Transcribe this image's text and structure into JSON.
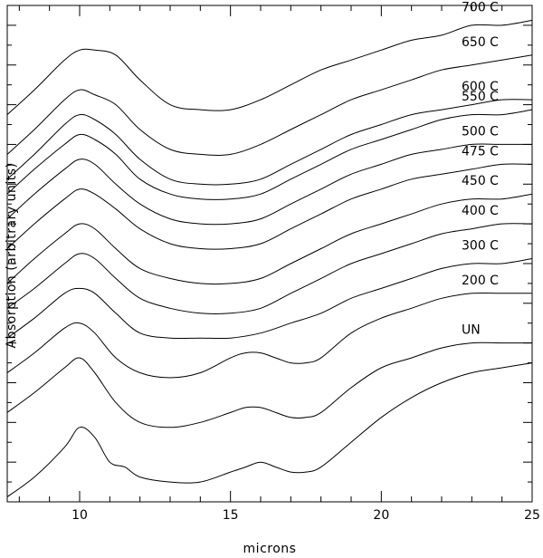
{
  "chart_data": {
    "type": "line",
    "title": "",
    "xlabel": "microns",
    "ylabel": "Absorption (arbitrary units)",
    "xlim": [
      7.6,
      25
    ],
    "ylim": [
      0,
      1
    ],
    "x_ticks": [
      10,
      15,
      20,
      25
    ],
    "y_ticks": [
      0,
      0.04,
      0.08,
      0.12,
      0.16,
      0.2,
      0.24,
      0.28,
      0.32,
      0.36,
      0.4,
      0.44,
      0.48,
      0.52,
      0.56,
      0.6,
      0.64,
      0.68,
      0.72,
      0.76,
      0.8,
      0.84,
      0.88,
      0.92,
      0.96,
      1.0
    ],
    "grid": false,
    "legend": "none (curves labeled at right)",
    "series": [
      {
        "name": "700 C",
        "x": [
          7.6,
          8.5,
          9.5,
          10.0,
          10.5,
          11.2,
          12.0,
          13.0,
          14.0,
          15.0,
          16.0,
          17.0,
          18.0,
          19.0,
          20.0,
          21.0,
          22.0,
          23.0,
          24.0,
          25.0
        ],
        "y": [
          0.78,
          0.83,
          0.89,
          0.91,
          0.91,
          0.9,
          0.85,
          0.8,
          0.79,
          0.79,
          0.81,
          0.84,
          0.87,
          0.89,
          0.91,
          0.93,
          0.94,
          0.96,
          0.96,
          0.97
        ]
      },
      {
        "name": "650 C",
        "x": [
          7.6,
          8.5,
          9.5,
          10.0,
          10.5,
          11.2,
          12.0,
          13.0,
          14.0,
          15.0,
          16.0,
          17.0,
          18.0,
          19.0,
          20.0,
          21.0,
          22.0,
          23.0,
          24.0,
          25.0
        ],
        "y": [
          0.7,
          0.75,
          0.81,
          0.83,
          0.82,
          0.8,
          0.75,
          0.71,
          0.7,
          0.7,
          0.72,
          0.75,
          0.78,
          0.81,
          0.83,
          0.85,
          0.87,
          0.88,
          0.89,
          0.9
        ]
      },
      {
        "name": "600 C",
        "x": [
          7.6,
          8.5,
          9.5,
          10.0,
          10.5,
          11.2,
          12.0,
          13.0,
          14.0,
          15.0,
          16.0,
          17.0,
          18.0,
          19.0,
          20.0,
          21.0,
          22.0,
          23.0,
          24.0,
          25.0
        ],
        "y": [
          0.65,
          0.7,
          0.76,
          0.78,
          0.77,
          0.74,
          0.69,
          0.65,
          0.64,
          0.64,
          0.65,
          0.68,
          0.71,
          0.74,
          0.76,
          0.78,
          0.79,
          0.8,
          0.81,
          0.81
        ]
      },
      {
        "name": "550 C",
        "x": [
          7.6,
          8.5,
          9.5,
          10.0,
          10.5,
          11.2,
          12.0,
          13.0,
          14.0,
          15.0,
          16.0,
          17.0,
          18.0,
          19.0,
          20.0,
          21.0,
          22.0,
          23.0,
          24.0,
          25.0
        ],
        "y": [
          0.62,
          0.67,
          0.72,
          0.74,
          0.73,
          0.7,
          0.65,
          0.62,
          0.61,
          0.61,
          0.62,
          0.65,
          0.68,
          0.71,
          0.73,
          0.75,
          0.77,
          0.78,
          0.78,
          0.79
        ]
      },
      {
        "name": "500 C",
        "x": [
          7.6,
          8.5,
          9.5,
          10.0,
          10.5,
          11.2,
          12.0,
          13.0,
          14.0,
          15.0,
          16.0,
          17.0,
          18.0,
          19.0,
          20.0,
          21.0,
          22.0,
          23.0,
          24.0,
          25.0
        ],
        "y": [
          0.57,
          0.62,
          0.67,
          0.69,
          0.68,
          0.64,
          0.6,
          0.57,
          0.56,
          0.56,
          0.57,
          0.6,
          0.63,
          0.66,
          0.68,
          0.7,
          0.71,
          0.72,
          0.72,
          0.72
        ]
      },
      {
        "name": "475 C",
        "x": [
          7.6,
          8.5,
          9.5,
          10.0,
          10.5,
          11.2,
          12.0,
          13.0,
          14.0,
          15.0,
          16.0,
          17.0,
          18.0,
          19.0,
          20.0,
          21.0,
          22.0,
          23.0,
          24.0,
          25.0
        ],
        "y": [
          0.51,
          0.56,
          0.61,
          0.63,
          0.62,
          0.59,
          0.55,
          0.52,
          0.51,
          0.51,
          0.52,
          0.55,
          0.58,
          0.61,
          0.63,
          0.65,
          0.66,
          0.67,
          0.68,
          0.68
        ]
      },
      {
        "name": "450 C",
        "x": [
          7.6,
          8.5,
          9.5,
          10.0,
          10.5,
          11.2,
          12.0,
          13.0,
          14.0,
          15.0,
          16.0,
          17.0,
          18.0,
          19.0,
          20.0,
          21.0,
          22.0,
          23.0,
          24.0,
          25.0
        ],
        "y": [
          0.44,
          0.49,
          0.54,
          0.56,
          0.55,
          0.51,
          0.47,
          0.45,
          0.44,
          0.44,
          0.45,
          0.48,
          0.51,
          0.54,
          0.56,
          0.58,
          0.6,
          0.61,
          0.61,
          0.62
        ]
      },
      {
        "name": "400 C",
        "x": [
          7.6,
          8.5,
          9.5,
          10.0,
          10.5,
          11.2,
          12.0,
          13.0,
          14.0,
          15.0,
          16.0,
          17.0,
          18.0,
          19.0,
          20.0,
          21.0,
          22.0,
          23.0,
          24.0,
          25.0
        ],
        "y": [
          0.39,
          0.43,
          0.48,
          0.5,
          0.49,
          0.45,
          0.41,
          0.39,
          0.38,
          0.38,
          0.39,
          0.42,
          0.45,
          0.48,
          0.5,
          0.52,
          0.54,
          0.55,
          0.56,
          0.56
        ]
      },
      {
        "name": "300 C",
        "x": [
          7.6,
          8.5,
          9.5,
          10.0,
          10.5,
          11.2,
          12.0,
          13.0,
          14.0,
          15.0,
          16.0,
          17.0,
          18.0,
          19.0,
          20.0,
          21.0,
          22.0,
          23.0,
          24.0,
          25.0
        ],
        "y": [
          0.33,
          0.37,
          0.42,
          0.43,
          0.42,
          0.38,
          0.34,
          0.33,
          0.33,
          0.33,
          0.34,
          0.36,
          0.38,
          0.41,
          0.43,
          0.45,
          0.47,
          0.48,
          0.48,
          0.49
        ]
      },
      {
        "name": "200 C",
        "x": [
          7.6,
          8.5,
          9.5,
          10.0,
          10.5,
          11.2,
          12.0,
          13.0,
          14.0,
          15.0,
          15.5,
          16.0,
          16.5,
          17.0,
          17.5,
          18.0,
          19.0,
          20.0,
          21.0,
          22.0,
          23.0,
          24.0,
          25.0
        ],
        "y": [
          0.26,
          0.3,
          0.35,
          0.36,
          0.34,
          0.29,
          0.26,
          0.25,
          0.26,
          0.29,
          0.3,
          0.3,
          0.29,
          0.28,
          0.28,
          0.29,
          0.34,
          0.37,
          0.39,
          0.41,
          0.42,
          0.42,
          0.42
        ]
      },
      {
        "name": "UN",
        "x": [
          7.6,
          8.5,
          9.5,
          10.0,
          10.5,
          11.2,
          12.0,
          13.0,
          14.0,
          15.0,
          15.5,
          16.0,
          16.5,
          17.0,
          17.5,
          18.0,
          19.0,
          20.0,
          21.0,
          22.0,
          23.0,
          24.0,
          25.0
        ],
        "y": [
          0.18,
          0.22,
          0.27,
          0.29,
          0.26,
          0.2,
          0.16,
          0.15,
          0.16,
          0.18,
          0.19,
          0.19,
          0.18,
          0.17,
          0.17,
          0.18,
          0.23,
          0.27,
          0.29,
          0.31,
          0.32,
          0.32,
          0.32
        ]
      },
      {
        "name": "",
        "x": [
          7.6,
          8.5,
          9.5,
          10.0,
          10.5,
          11.0,
          11.5,
          12.0,
          13.0,
          14.0,
          15.0,
          15.5,
          16.0,
          16.5,
          17.0,
          17.5,
          18.0,
          19.0,
          20.0,
          21.0,
          22.0,
          23.0,
          24.0,
          25.0
        ],
        "y": [
          0.01,
          0.05,
          0.11,
          0.15,
          0.13,
          0.08,
          0.07,
          0.05,
          0.04,
          0.04,
          0.06,
          0.07,
          0.08,
          0.07,
          0.06,
          0.06,
          0.07,
          0.12,
          0.17,
          0.21,
          0.24,
          0.26,
          0.27,
          0.28
        ]
      }
    ]
  }
}
